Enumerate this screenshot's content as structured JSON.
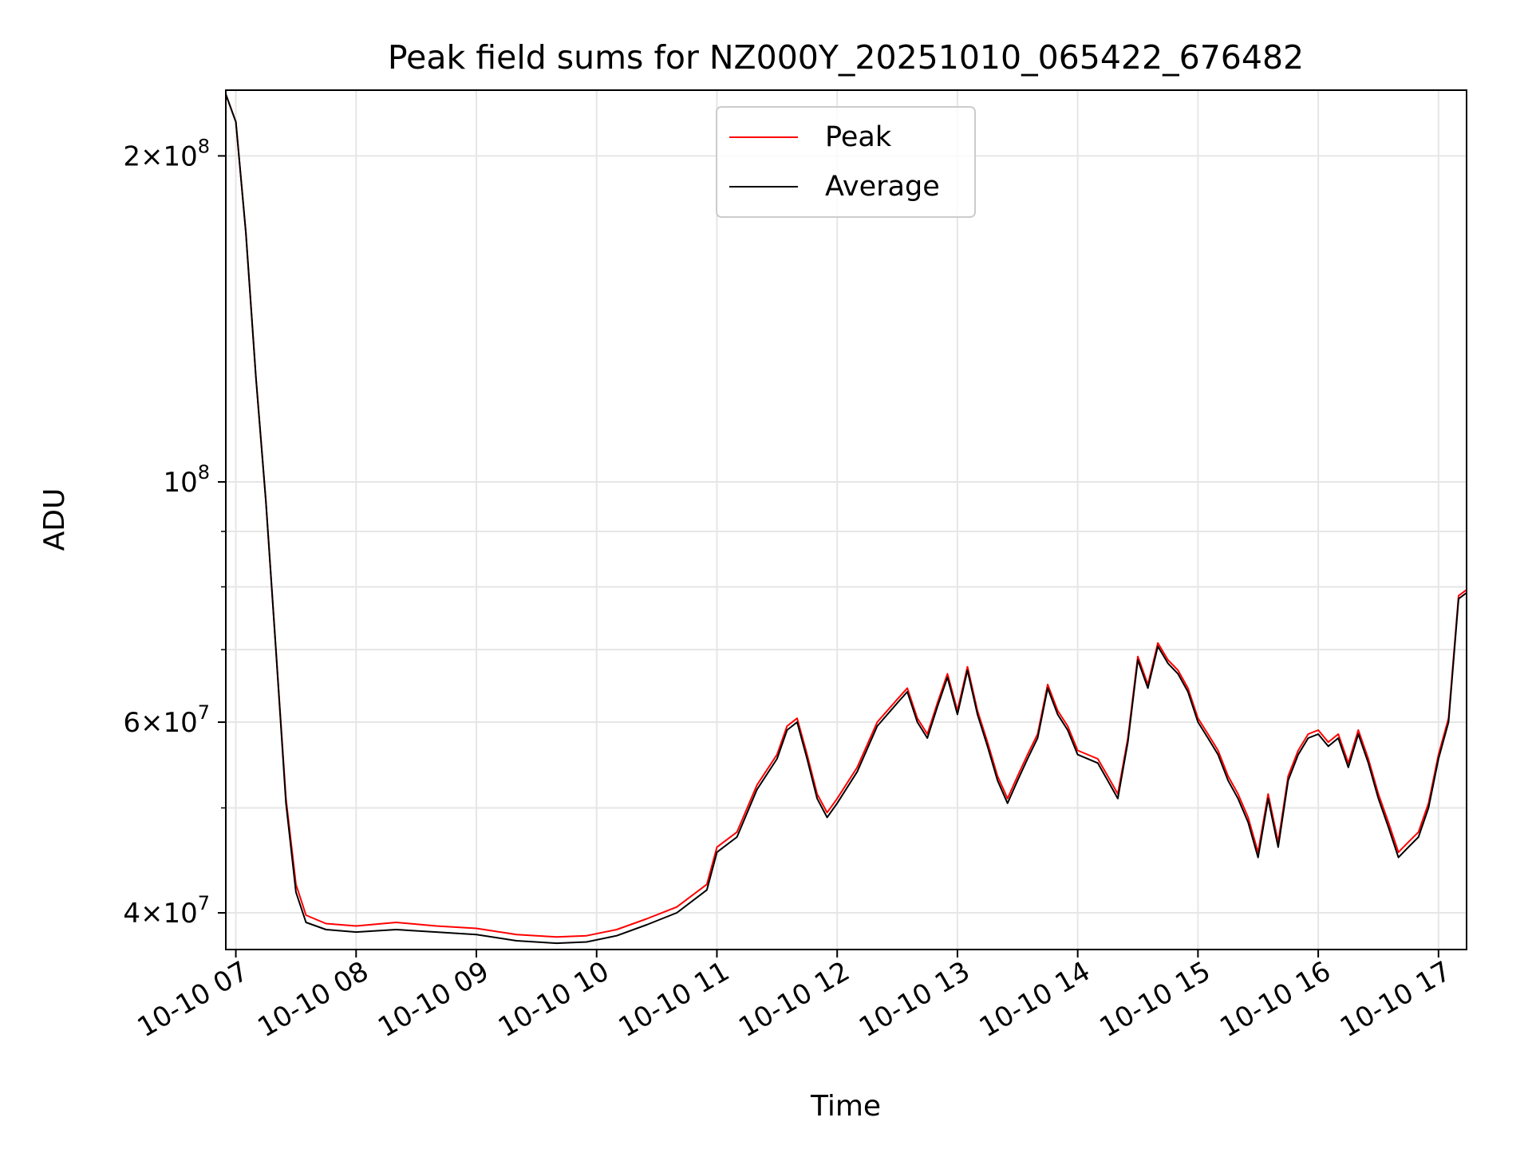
{
  "chart_data": {
    "type": "line",
    "title": "Peak field sums for NZ000Y_20251010_065422_676482",
    "xlabel": "Time",
    "ylabel": "ADU",
    "yscale": "log",
    "grid": true,
    "legend_position": "top-center",
    "xlim": [
      "2025-10-10 06:55",
      "2025-10-10 17:14"
    ],
    "ylim": [
      37000000,
      230000000
    ],
    "x_ticks": [
      {
        "value": "2025-10-10 07:00",
        "label": "10-10 07"
      },
      {
        "value": "2025-10-10 08:00",
        "label": "10-10 08"
      },
      {
        "value": "2025-10-10 09:00",
        "label": "10-10 09"
      },
      {
        "value": "2025-10-10 10:00",
        "label": "10-10 10"
      },
      {
        "value": "2025-10-10 11:00",
        "label": "10-10 11"
      },
      {
        "value": "2025-10-10 12:00",
        "label": "10-10 12"
      },
      {
        "value": "2025-10-10 13:00",
        "label": "10-10 13"
      },
      {
        "value": "2025-10-10 14:00",
        "label": "10-10 14"
      },
      {
        "value": "2025-10-10 15:00",
        "label": "10-10 15"
      },
      {
        "value": "2025-10-10 16:00",
        "label": "10-10 16"
      },
      {
        "value": "2025-10-10 17:00",
        "label": "10-10 17"
      }
    ],
    "y_ticks_major": [
      {
        "value": 40000000,
        "mantissa": "4",
        "exponent": "7"
      },
      {
        "value": 60000000,
        "mantissa": "6",
        "exponent": "7"
      },
      {
        "value": 100000000,
        "mantissa": "",
        "exponent": "8"
      },
      {
        "value": 200000000,
        "mantissa": "2",
        "exponent": "8"
      }
    ],
    "y_ticks_minor": [
      50000000,
      70000000,
      80000000,
      90000000
    ],
    "colors": {
      "peak": "#ff0000",
      "average": "#000000"
    },
    "series": [
      {
        "name": "Peak",
        "color": "#ff0000",
        "points": [
          [
            "2025-10-10 06:55",
            228000000
          ],
          [
            "2025-10-10 07:00",
            215000000
          ],
          [
            "2025-10-10 07:05",
            170000000
          ],
          [
            "2025-10-10 07:10",
            125000000
          ],
          [
            "2025-10-10 07:15",
            96000000
          ],
          [
            "2025-10-10 07:20",
            70000000
          ],
          [
            "2025-10-10 07:25",
            51000000
          ],
          [
            "2025-10-10 07:30",
            42500000
          ],
          [
            "2025-10-10 07:35",
            39800000
          ],
          [
            "2025-10-10 07:45",
            39100000
          ],
          [
            "2025-10-10 08:00",
            38900000
          ],
          [
            "2025-10-10 08:20",
            39200000
          ],
          [
            "2025-10-10 08:40",
            38900000
          ],
          [
            "2025-10-10 09:00",
            38700000
          ],
          [
            "2025-10-10 09:20",
            38200000
          ],
          [
            "2025-10-10 09:40",
            38000000
          ],
          [
            "2025-10-10 09:55",
            38100000
          ],
          [
            "2025-10-10 10:10",
            38600000
          ],
          [
            "2025-10-10 10:25",
            39500000
          ],
          [
            "2025-10-10 10:40",
            40500000
          ],
          [
            "2025-10-10 10:55",
            42500000
          ],
          [
            "2025-10-10 11:00",
            46000000
          ],
          [
            "2025-10-10 11:10",
            47500000
          ],
          [
            "2025-10-10 11:20",
            52500000
          ],
          [
            "2025-10-10 11:30",
            56000000
          ],
          [
            "2025-10-10 11:35",
            59500000
          ],
          [
            "2025-10-10 11:40",
            60500000
          ],
          [
            "2025-10-10 11:45",
            56000000
          ],
          [
            "2025-10-10 11:50",
            51500000
          ],
          [
            "2025-10-10 11:55",
            49500000
          ],
          [
            "2025-10-10 12:00",
            51000000
          ],
          [
            "2025-10-10 12:10",
            54500000
          ],
          [
            "2025-10-10 12:20",
            60000000
          ],
          [
            "2025-10-10 12:30",
            63000000
          ],
          [
            "2025-10-10 12:35",
            64500000
          ],
          [
            "2025-10-10 12:40",
            60500000
          ],
          [
            "2025-10-10 12:45",
            58500000
          ],
          [
            "2025-10-10 12:50",
            62500000
          ],
          [
            "2025-10-10 12:55",
            66500000
          ],
          [
            "2025-10-10 13:00",
            61500000
          ],
          [
            "2025-10-10 13:05",
            67500000
          ],
          [
            "2025-10-10 13:10",
            61500000
          ],
          [
            "2025-10-10 13:15",
            57500000
          ],
          [
            "2025-10-10 13:20",
            53500000
          ],
          [
            "2025-10-10 13:25",
            51000000
          ],
          [
            "2025-10-10 13:30",
            53500000
          ],
          [
            "2025-10-10 13:35",
            56000000
          ],
          [
            "2025-10-10 13:40",
            58500000
          ],
          [
            "2025-10-10 13:45",
            65000000
          ],
          [
            "2025-10-10 13:50",
            61500000
          ],
          [
            "2025-10-10 13:55",
            59500000
          ],
          [
            "2025-10-10 14:00",
            56500000
          ],
          [
            "2025-10-10 14:10",
            55500000
          ],
          [
            "2025-10-10 14:15",
            53500000
          ],
          [
            "2025-10-10 14:20",
            51500000
          ],
          [
            "2025-10-10 14:25",
            58000000
          ],
          [
            "2025-10-10 14:30",
            69000000
          ],
          [
            "2025-10-10 14:35",
            65000000
          ],
          [
            "2025-10-10 14:40",
            71000000
          ],
          [
            "2025-10-10 14:45",
            68500000
          ],
          [
            "2025-10-10 14:50",
            67000000
          ],
          [
            "2025-10-10 14:55",
            64500000
          ],
          [
            "2025-10-10 15:00",
            60500000
          ],
          [
            "2025-10-10 15:05",
            58500000
          ],
          [
            "2025-10-10 15:10",
            56500000
          ],
          [
            "2025-10-10 15:15",
            53500000
          ],
          [
            "2025-10-10 15:20",
            51500000
          ],
          [
            "2025-10-10 15:25",
            49000000
          ],
          [
            "2025-10-10 15:30",
            45500000
          ],
          [
            "2025-10-10 15:35",
            51500000
          ],
          [
            "2025-10-10 15:40",
            46500000
          ],
          [
            "2025-10-10 15:45",
            53500000
          ],
          [
            "2025-10-10 15:50",
            56500000
          ],
          [
            "2025-10-10 15:55",
            58500000
          ],
          [
            "2025-10-10 16:00",
            59000000
          ],
          [
            "2025-10-10 16:05",
            57500000
          ],
          [
            "2025-10-10 16:10",
            58500000
          ],
          [
            "2025-10-10 16:15",
            55000000
          ],
          [
            "2025-10-10 16:20",
            59000000
          ],
          [
            "2025-10-10 16:25",
            55500000
          ],
          [
            "2025-10-10 16:30",
            51500000
          ],
          [
            "2025-10-10 16:35",
            48500000
          ],
          [
            "2025-10-10 16:40",
            45500000
          ],
          [
            "2025-10-10 16:45",
            46500000
          ],
          [
            "2025-10-10 16:50",
            47500000
          ],
          [
            "2025-10-10 16:55",
            50500000
          ],
          [
            "2025-10-10 17:00",
            56000000
          ],
          [
            "2025-10-10 17:05",
            60500000
          ],
          [
            "2025-10-10 17:10",
            78500000
          ],
          [
            "2025-10-10 17:14",
            79500000
          ]
        ]
      },
      {
        "name": "Average",
        "color": "#000000",
        "points": [
          [
            "2025-10-10 06:55",
            228000000
          ],
          [
            "2025-10-10 07:00",
            215000000
          ],
          [
            "2025-10-10 07:05",
            170000000
          ],
          [
            "2025-10-10 07:10",
            125000000
          ],
          [
            "2025-10-10 07:15",
            96000000
          ],
          [
            "2025-10-10 07:20",
            70000000
          ],
          [
            "2025-10-10 07:25",
            50500000
          ],
          [
            "2025-10-10 07:30",
            41800000
          ],
          [
            "2025-10-10 07:35",
            39200000
          ],
          [
            "2025-10-10 07:45",
            38600000
          ],
          [
            "2025-10-10 08:00",
            38400000
          ],
          [
            "2025-10-10 08:20",
            38600000
          ],
          [
            "2025-10-10 08:40",
            38400000
          ],
          [
            "2025-10-10 09:00",
            38200000
          ],
          [
            "2025-10-10 09:20",
            37700000
          ],
          [
            "2025-10-10 09:40",
            37500000
          ],
          [
            "2025-10-10 09:55",
            37600000
          ],
          [
            "2025-10-10 10:10",
            38100000
          ],
          [
            "2025-10-10 10:25",
            39000000
          ],
          [
            "2025-10-10 10:40",
            40000000
          ],
          [
            "2025-10-10 10:55",
            42000000
          ],
          [
            "2025-10-10 11:00",
            45500000
          ],
          [
            "2025-10-10 11:10",
            47000000
          ],
          [
            "2025-10-10 11:20",
            52000000
          ],
          [
            "2025-10-10 11:30",
            55500000
          ],
          [
            "2025-10-10 11:35",
            59000000
          ],
          [
            "2025-10-10 11:40",
            60000000
          ],
          [
            "2025-10-10 11:45",
            55500000
          ],
          [
            "2025-10-10 11:50",
            51000000
          ],
          [
            "2025-10-10 11:55",
            49000000
          ],
          [
            "2025-10-10 12:00",
            50500000
          ],
          [
            "2025-10-10 12:10",
            54000000
          ],
          [
            "2025-10-10 12:20",
            59500000
          ],
          [
            "2025-10-10 12:30",
            62500000
          ],
          [
            "2025-10-10 12:35",
            64000000
          ],
          [
            "2025-10-10 12:40",
            60000000
          ],
          [
            "2025-10-10 12:45",
            58000000
          ],
          [
            "2025-10-10 12:50",
            62000000
          ],
          [
            "2025-10-10 12:55",
            66000000
          ],
          [
            "2025-10-10 13:00",
            61000000
          ],
          [
            "2025-10-10 13:05",
            67000000
          ],
          [
            "2025-10-10 13:10",
            61000000
          ],
          [
            "2025-10-10 13:15",
            57000000
          ],
          [
            "2025-10-10 13:20",
            53000000
          ],
          [
            "2025-10-10 13:25",
            50500000
          ],
          [
            "2025-10-10 13:30",
            53000000
          ],
          [
            "2025-10-10 13:35",
            55500000
          ],
          [
            "2025-10-10 13:40",
            58000000
          ],
          [
            "2025-10-10 13:45",
            64500000
          ],
          [
            "2025-10-10 13:50",
            61000000
          ],
          [
            "2025-10-10 13:55",
            59000000
          ],
          [
            "2025-10-10 14:00",
            56000000
          ],
          [
            "2025-10-10 14:10",
            55000000
          ],
          [
            "2025-10-10 14:15",
            53000000
          ],
          [
            "2025-10-10 14:20",
            51000000
          ],
          [
            "2025-10-10 14:25",
            57500000
          ],
          [
            "2025-10-10 14:30",
            68500000
          ],
          [
            "2025-10-10 14:35",
            64500000
          ],
          [
            "2025-10-10 14:40",
            70500000
          ],
          [
            "2025-10-10 14:45",
            68000000
          ],
          [
            "2025-10-10 14:50",
            66500000
          ],
          [
            "2025-10-10 14:55",
            64000000
          ],
          [
            "2025-10-10 15:00",
            60000000
          ],
          [
            "2025-10-10 15:05",
            58000000
          ],
          [
            "2025-10-10 15:10",
            56000000
          ],
          [
            "2025-10-10 15:15",
            53000000
          ],
          [
            "2025-10-10 15:20",
            51000000
          ],
          [
            "2025-10-10 15:25",
            48500000
          ],
          [
            "2025-10-10 15:30",
            45000000
          ],
          [
            "2025-10-10 15:35",
            51000000
          ],
          [
            "2025-10-10 15:40",
            46000000
          ],
          [
            "2025-10-10 15:45",
            53000000
          ],
          [
            "2025-10-10 15:50",
            56000000
          ],
          [
            "2025-10-10 15:55",
            58000000
          ],
          [
            "2025-10-10 16:00",
            58500000
          ],
          [
            "2025-10-10 16:05",
            57000000
          ],
          [
            "2025-10-10 16:10",
            58000000
          ],
          [
            "2025-10-10 16:15",
            54500000
          ],
          [
            "2025-10-10 16:20",
            58500000
          ],
          [
            "2025-10-10 16:25",
            55000000
          ],
          [
            "2025-10-10 16:30",
            51000000
          ],
          [
            "2025-10-10 16:35",
            48000000
          ],
          [
            "2025-10-10 16:40",
            45000000
          ],
          [
            "2025-10-10 16:45",
            46000000
          ],
          [
            "2025-10-10 16:50",
            47000000
          ],
          [
            "2025-10-10 16:55",
            50000000
          ],
          [
            "2025-10-10 17:00",
            55500000
          ],
          [
            "2025-10-10 17:05",
            60000000
          ],
          [
            "2025-10-10 17:10",
            78000000
          ],
          [
            "2025-10-10 17:14",
            79000000
          ]
        ]
      }
    ]
  }
}
